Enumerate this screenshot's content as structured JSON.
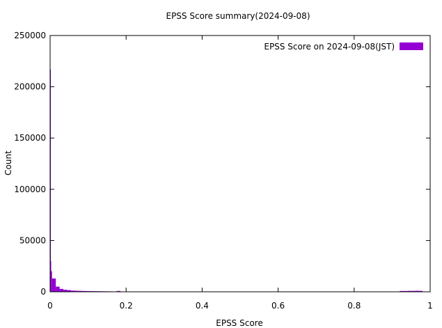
{
  "chart_data": {
    "type": "bar",
    "title": "EPSS Score summary(2024-09-08)",
    "xlabel": "EPSS Score",
    "ylabel": "Count",
    "xlim": [
      0,
      1
    ],
    "ylim": [
      0,
      250000
    ],
    "x_ticks": [
      "0",
      "0.2",
      "0.4",
      "0.6",
      "0.8",
      "1"
    ],
    "y_ticks": [
      "0",
      "50000",
      "100000",
      "150000",
      "200000",
      "250000"
    ],
    "grid": false,
    "legend_position": "top-right",
    "bar_color": "#9400d3",
    "bin_width": 0.01,
    "series": [
      {
        "name": "EPSS Score on 2024-09-08(JST)",
        "bins": [
          {
            "x": 0.0,
            "value": 217000
          },
          {
            "x": 0.001,
            "value": 30000
          },
          {
            "x": 0.002,
            "value": 20000
          },
          {
            "x": 0.005,
            "value": 13000
          },
          {
            "x": 0.015,
            "value": 5000
          },
          {
            "x": 0.025,
            "value": 2800
          },
          {
            "x": 0.035,
            "value": 2000
          },
          {
            "x": 0.045,
            "value": 1600
          },
          {
            "x": 0.055,
            "value": 1200
          },
          {
            "x": 0.065,
            "value": 1000
          },
          {
            "x": 0.075,
            "value": 900
          },
          {
            "x": 0.085,
            "value": 800
          },
          {
            "x": 0.095,
            "value": 700
          },
          {
            "x": 0.105,
            "value": 650
          },
          {
            "x": 0.115,
            "value": 600
          },
          {
            "x": 0.125,
            "value": 550
          },
          {
            "x": 0.135,
            "value": 500
          },
          {
            "x": 0.145,
            "value": 450
          },
          {
            "x": 0.155,
            "value": 400
          },
          {
            "x": 0.175,
            "value": 800
          },
          {
            "x": 0.185,
            "value": 300
          },
          {
            "x": 0.92,
            "value": 800
          },
          {
            "x": 0.93,
            "value": 800
          },
          {
            "x": 0.94,
            "value": 900
          },
          {
            "x": 0.95,
            "value": 900
          },
          {
            "x": 0.96,
            "value": 1000
          },
          {
            "x": 0.97,
            "value": 900
          }
        ]
      }
    ]
  }
}
